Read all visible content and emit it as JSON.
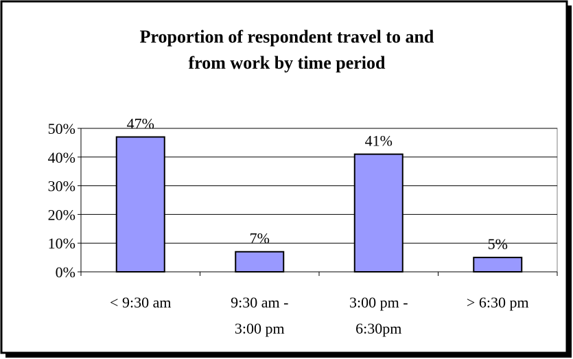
{
  "chart_data": {
    "type": "bar",
    "title": "Proportion of respondent travel to and\nfrom work by time period",
    "categories": [
      "< 9:30 am",
      "9:30 am -\n3:00 pm",
      "3:00 pm -\n6:30pm",
      "> 6:30 pm"
    ],
    "values": [
      47,
      7,
      41,
      5
    ],
    "value_labels": [
      "47%",
      "7%",
      "41%",
      "5%"
    ],
    "color": "#9999ff",
    "ylim": [
      0,
      50
    ],
    "yticks": [
      {
        "value": 0,
        "label": "0%"
      },
      {
        "value": 10,
        "label": "10%"
      },
      {
        "value": 20,
        "label": "20%"
      },
      {
        "value": 30,
        "label": "30%"
      },
      {
        "value": 40,
        "label": "40%"
      },
      {
        "value": 50,
        "label": "50%"
      }
    ],
    "grid": true
  }
}
